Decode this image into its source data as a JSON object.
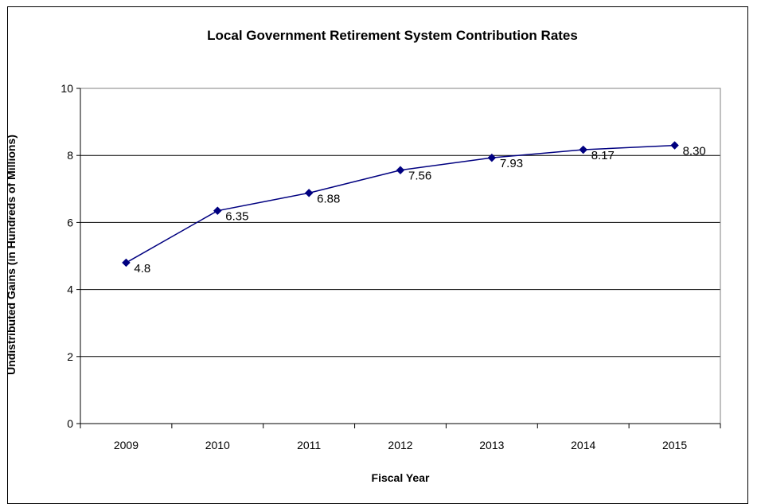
{
  "chart_data": {
    "type": "line",
    "title": "Local Government Retirement System Contribution Rates",
    "xlabel": "Fiscal Year",
    "ylabel": "Undistributed Gains (in Hundreds of Millions)",
    "categories": [
      "2009",
      "2010",
      "2011",
      "2012",
      "2013",
      "2014",
      "2015"
    ],
    "series": [
      {
        "values": [
          4.8,
          6.35,
          6.88,
          7.56,
          7.93,
          8.17,
          8.3
        ],
        "labels": [
          "4.8",
          "6.35",
          "6.88",
          "7.56",
          "7.93",
          "8.17",
          "8.30"
        ],
        "color": "#000080"
      }
    ],
    "ylim": [
      0,
      10
    ],
    "yticks": [
      "0",
      "2",
      "4",
      "6",
      "8",
      "10"
    ],
    "grid": true,
    "legend": "none"
  }
}
